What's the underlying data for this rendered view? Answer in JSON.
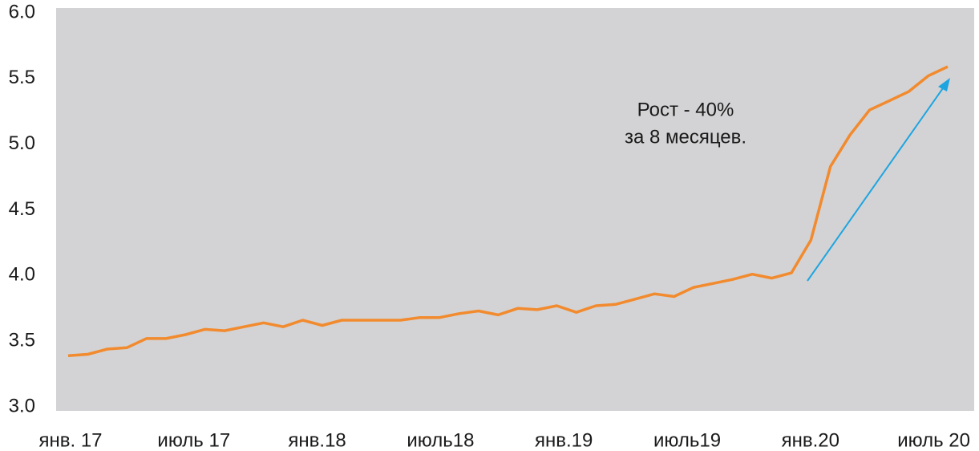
{
  "chart_data": {
    "type": "line",
    "categories": [
      "янв. 17",
      null,
      null,
      null,
      null,
      null,
      "июль 17",
      null,
      null,
      null,
      null,
      null,
      "янв.18",
      null,
      null,
      null,
      null,
      null,
      "июль18",
      null,
      null,
      null,
      null,
      null,
      "янв.19",
      null,
      null,
      null,
      null,
      null,
      "июль19",
      null,
      null,
      null,
      null,
      null,
      "янв.20",
      null,
      null,
      null,
      null,
      null,
      "июль 20",
      null,
      null,
      null
    ],
    "series": [
      {
        "color": "#f28a2e",
        "values": [
          3.39,
          3.4,
          3.44,
          3.45,
          3.52,
          3.52,
          3.55,
          3.59,
          3.58,
          3.61,
          3.64,
          3.61,
          3.66,
          3.62,
          3.66,
          3.66,
          3.66,
          3.66,
          3.68,
          3.68,
          3.71,
          3.73,
          3.7,
          3.75,
          3.74,
          3.77,
          3.72,
          3.77,
          3.78,
          3.82,
          3.86,
          3.84,
          3.91,
          3.94,
          3.97,
          4.01,
          3.98,
          4.02,
          4.27,
          4.83,
          5.07,
          5.26,
          5.33,
          5.4,
          5.52,
          5.59
        ]
      }
    ],
    "ylim": [
      3,
      6
    ],
    "yticks": [
      {
        "value": 3,
        "label": "3.0"
      },
      3.5,
      {
        "value": 4,
        "label": "4.0"
      },
      4.5,
      {
        "value": 5,
        "label": "5.0"
      },
      5.5,
      {
        "value": 6,
        "label": "6.0"
      }
    ],
    "grid": false,
    "annotations": [
      "Рост - 40%",
      "за 8 месяцев."
    ]
  }
}
